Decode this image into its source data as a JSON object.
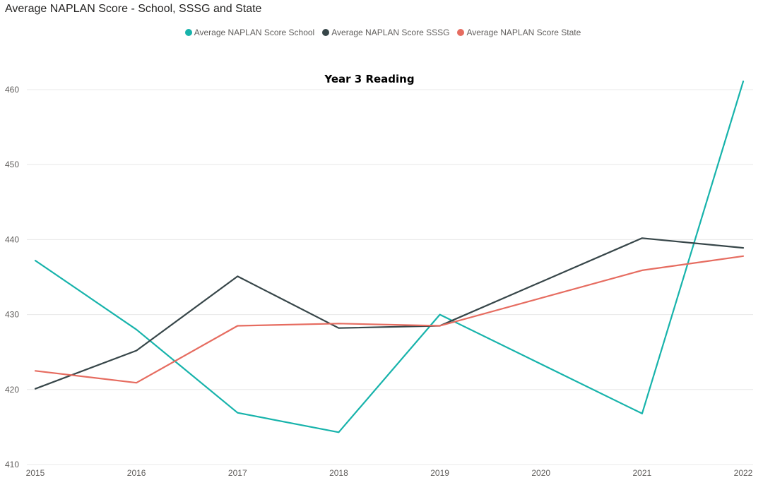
{
  "visual": {
    "title": "Average NAPLAN Score - School, SSSG and State"
  },
  "chart_data": {
    "type": "line",
    "title": "Year 3 Reading",
    "xlabel": "",
    "ylabel": "",
    "x": [
      "2015",
      "2016",
      "2017",
      "2018",
      "2019",
      "2020",
      "2021",
      "2022"
    ],
    "ylim": [
      410,
      460
    ],
    "yticks": [
      410,
      420,
      430,
      440,
      450,
      460
    ],
    "grid": true,
    "legend_position": "top-center",
    "series": [
      {
        "name": "Average NAPLAN Score School",
        "color": "#17B3AB",
        "values": [
          437.2,
          428.0,
          416.9,
          414.3,
          430.0,
          null,
          416.8,
          461.1
        ]
      },
      {
        "name": "Average NAPLAN Score SSSG",
        "color": "#374649",
        "values": [
          420.1,
          425.2,
          435.1,
          428.2,
          428.5,
          null,
          440.2,
          438.9
        ]
      },
      {
        "name": "Average NAPLAN Score State",
        "color": "#E66C60",
        "values": [
          422.5,
          420.9,
          428.5,
          428.8,
          428.5,
          null,
          435.9,
          437.8
        ]
      }
    ]
  }
}
